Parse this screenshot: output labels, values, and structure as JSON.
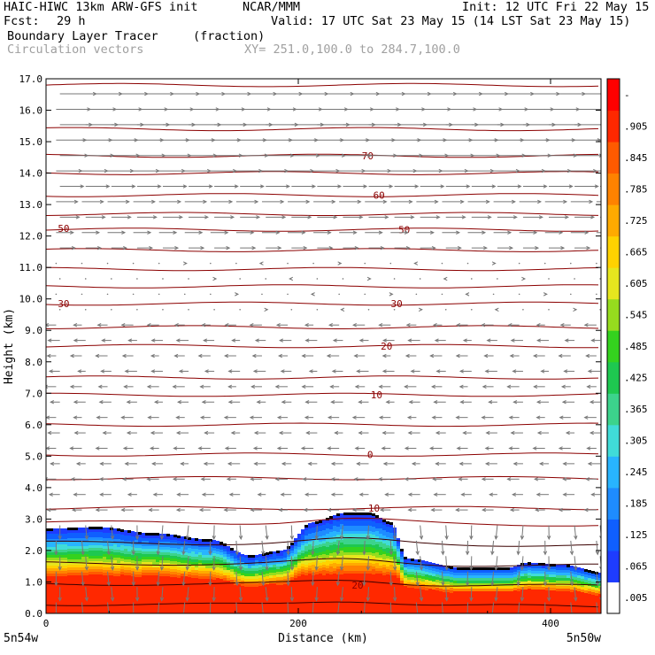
{
  "header": {
    "model": "HAIC-HIWC 13km ARW-GFS init",
    "org": "NCAR/MMM",
    "init": "Init: 12 UTC Fri 22 May 15",
    "fcst_label": "Fcst:",
    "fcst_value": "29 h",
    "valid": "Valid: 17 UTC Sat 23 May 15 (14 LST Sat 23 May 15)",
    "field1_name": "Boundary Layer Tracer",
    "field1_units": "(fraction)",
    "field2_name": "Circulation vectors",
    "xy": "XY= 251.0,100.0 to 284.7,100.0"
  },
  "chart_data": {
    "type": "heatmap",
    "ylabel": "Height (km)",
    "xlabel": "Distance (km)",
    "xlim": [
      0,
      440
    ],
    "ylim": [
      0.0,
      17.0
    ],
    "y_ticks": [
      "0.0",
      "1.0",
      "2.0",
      "3.0",
      "4.0",
      "5.0",
      "6.0",
      "7.0",
      "8.0",
      "9.0",
      "10.0",
      "11.0",
      "12.0",
      "13.0",
      "14.0",
      "15.0",
      "16.0",
      "17.0"
    ],
    "x_ticks": [
      "0",
      "200",
      "400"
    ],
    "x_end_labels": [
      "5n54w",
      "5n50w"
    ],
    "colorbar": {
      "labels": [
        ".005",
        ".065",
        ".125",
        ".185",
        ".245",
        ".305",
        ".365",
        ".425",
        ".485",
        ".545",
        ".605",
        ".665",
        ".725",
        ".785",
        ".845",
        ".905",
        "-"
      ],
      "colors": [
        "#ffffff",
        "#1e3cff",
        "#0f5fff",
        "#1e8cff",
        "#28b4ff",
        "#40dcd8",
        "#3cd38c",
        "#1ec850",
        "#34d21e",
        "#96dc1e",
        "#e6e61e",
        "#ffd200",
        "#ffaa00",
        "#ff8200",
        "#ff5a00",
        "#ff2800",
        "#ff0000"
      ]
    },
    "tracer_top_km": [
      [
        0,
        2.7
      ],
      [
        40,
        2.75
      ],
      [
        85,
        2.55
      ],
      [
        130,
        2.35
      ],
      [
        160,
        1.85
      ],
      [
        185,
        2.0
      ],
      [
        210,
        2.9
      ],
      [
        235,
        3.2
      ],
      [
        255,
        3.2
      ],
      [
        272,
        2.9
      ],
      [
        285,
        1.75
      ],
      [
        330,
        1.45
      ],
      [
        365,
        1.45
      ],
      [
        380,
        1.62
      ],
      [
        410,
        1.55
      ],
      [
        440,
        1.3
      ]
    ],
    "isotherm_labels": [
      {
        "text": "70",
        "x": 255,
        "y": 14.55
      },
      {
        "text": "60",
        "x": 264,
        "y": 13.3
      },
      {
        "text": "50",
        "x": 14,
        "y": 12.25
      },
      {
        "text": "50",
        "x": 284,
        "y": 12.2
      },
      {
        "text": "30",
        "x": 14,
        "y": 9.85
      },
      {
        "text": "30",
        "x": 278,
        "y": 9.85
      },
      {
        "text": "20",
        "x": 270,
        "y": 8.5
      },
      {
        "text": "10",
        "x": 262,
        "y": 6.95
      },
      {
        "text": "0",
        "x": 257,
        "y": 5.05
      },
      {
        "text": "10",
        "x": 260,
        "y": 3.35
      },
      {
        "text": "20",
        "x": 247,
        "y": 0.9
      }
    ]
  }
}
